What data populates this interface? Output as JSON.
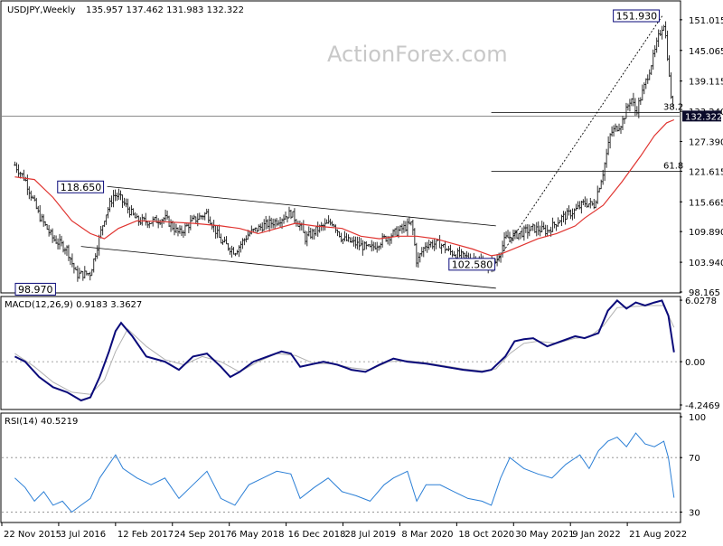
{
  "header": {
    "symbol": "USDJPY,Weekly",
    "ohlc": "135.957 137.462 131.983 132.322"
  },
  "watermark": "ActionForex.com",
  "colors": {
    "bars": "#1a1a1a",
    "ma": "#e0332f",
    "macd": "#0a0a7a",
    "signal": "#b0b0b0",
    "guide": "#000000",
    "current_bg": "#0a0a2a"
  },
  "chart_data": [
    {
      "type": "ohlc",
      "title": "USDJPY,Weekly",
      "ylim": [
        98.165,
        154.5
      ],
      "y_ticks": [
        "151.015",
        "145.065",
        "139.115",
        "133.240",
        "127.390",
        "121.615",
        "115.665",
        "109.890",
        "103.940",
        "98.165"
      ],
      "x_ticks": [
        "22 Nov 2015",
        "3 Jul 2016",
        "12 Feb 2017",
        "24 Sep 2017",
        "6 May 2018",
        "16 Dec 2018",
        "28 Jul 2019",
        "8 Mar 2020",
        "18 Oct 2020",
        "30 May 2021",
        "9 Jan 2022",
        "21 Aug 2022"
      ],
      "current_price": "132.322",
      "close_path": [
        [
          2015.89,
          122.8
        ],
        [
          2016.0,
          120.0
        ],
        [
          2016.15,
          113.0
        ],
        [
          2016.3,
          108.5
        ],
        [
          2016.45,
          106.5
        ],
        [
          2016.55,
          101.5
        ],
        [
          2016.7,
          101.8
        ],
        [
          2016.85,
          112.5
        ],
        [
          2016.95,
          117.0
        ],
        [
          2017.0,
          116.8
        ],
        [
          2017.2,
          112.0
        ],
        [
          2017.35,
          111.8
        ],
        [
          2017.5,
          112.5
        ],
        [
          2017.65,
          109.5
        ],
        [
          2017.8,
          112.0
        ],
        [
          2017.95,
          113.5
        ],
        [
          2018.1,
          108.0
        ],
        [
          2018.25,
          106.0
        ],
        [
          2018.4,
          109.5
        ],
        [
          2018.55,
          111.0
        ],
        [
          2018.7,
          112.0
        ],
        [
          2018.85,
          113.5
        ],
        [
          2018.97,
          110.5
        ],
        [
          2019.0,
          108.5
        ],
        [
          2019.15,
          110.5
        ],
        [
          2019.3,
          111.8
        ],
        [
          2019.4,
          108.5
        ],
        [
          2019.55,
          107.5
        ],
        [
          2019.7,
          106.5
        ],
        [
          2019.85,
          108.5
        ],
        [
          2019.95,
          109.5
        ],
        [
          2020.15,
          111.5
        ],
        [
          2020.2,
          104.0
        ],
        [
          2020.3,
          107.5
        ],
        [
          2020.45,
          107.5
        ],
        [
          2020.55,
          106.0
        ],
        [
          2020.7,
          105.0
        ],
        [
          2020.85,
          104.5
        ],
        [
          2020.95,
          103.3
        ],
        [
          2021.05,
          104.0
        ],
        [
          2021.15,
          108.5
        ],
        [
          2021.3,
          109.5
        ],
        [
          2021.45,
          110.5
        ],
        [
          2021.6,
          110.0
        ],
        [
          2021.75,
          112.5
        ],
        [
          2021.9,
          114.0
        ],
        [
          2022.0,
          115.5
        ],
        [
          2022.1,
          115.0
        ],
        [
          2022.2,
          121.5
        ],
        [
          2022.28,
          129.0
        ],
        [
          2022.4,
          131.0
        ],
        [
          2022.5,
          136.0
        ],
        [
          2022.55,
          133.0
        ],
        [
          2022.65,
          138.5
        ],
        [
          2022.75,
          144.5
        ],
        [
          2022.8,
          148.0
        ],
        [
          2022.85,
          150.5
        ],
        [
          2022.88,
          146.5
        ],
        [
          2022.91,
          139.5
        ],
        [
          2022.94,
          134.5
        ],
        [
          2022.96,
          132.3
        ]
      ],
      "series": [
        {
          "name": "",
          "points": [
            [
              2015.89,
              120.5
            ],
            [
              2016.1,
              120.0
            ],
            [
              2016.3,
              116.5
            ],
            [
              2016.5,
              112.0
            ],
            [
              2016.7,
              109.5
            ],
            [
              2016.85,
              108.5
            ],
            [
              2017.0,
              110.5
            ],
            [
              2017.2,
              112.0
            ],
            [
              2017.5,
              111.8
            ],
            [
              2017.8,
              111.5
            ],
            [
              2018.1,
              111.0
            ],
            [
              2018.3,
              110.5
            ],
            [
              2018.5,
              109.5
            ],
            [
              2018.7,
              110.5
            ],
            [
              2018.9,
              111.5
            ],
            [
              2019.1,
              111.0
            ],
            [
              2019.4,
              110.5
            ],
            [
              2019.6,
              109.0
            ],
            [
              2019.8,
              108.5
            ],
            [
              2020.0,
              109.0
            ],
            [
              2020.2,
              109.0
            ],
            [
              2020.4,
              108.5
            ],
            [
              2020.6,
              107.5
            ],
            [
              2020.8,
              106.5
            ],
            [
              2021.0,
              105.2
            ],
            [
              2021.1,
              105.5
            ],
            [
              2021.3,
              107.0
            ],
            [
              2021.5,
              108.5
            ],
            [
              2021.7,
              109.5
            ],
            [
              2021.9,
              111.0
            ],
            [
              2022.0,
              112.5
            ],
            [
              2022.2,
              115.0
            ],
            [
              2022.4,
              119.5
            ],
            [
              2022.6,
              124.5
            ],
            [
              2022.75,
              128.5
            ],
            [
              2022.88,
              131.0
            ],
            [
              2022.96,
              131.6
            ]
          ]
        }
      ],
      "annotations": [
        {
          "label": "118.650",
          "x": 2016.88,
          "y": 118.65,
          "kind": "high"
        },
        {
          "label": "98.970",
          "x": 2016.47,
          "y": 98.97,
          "kind": "low"
        },
        {
          "label": "102.580",
          "x": 2021.0,
          "y": 102.58,
          "kind": "low"
        },
        {
          "label": "151.930",
          "x": 2022.84,
          "y": 151.93,
          "kind": "high"
        }
      ],
      "channel": {
        "upper": [
          [
            2016.88,
            118.65
          ],
          [
            2021.05,
            111.0
          ]
        ],
        "lower": [
          [
            2016.6,
            107.0
          ],
          [
            2021.05,
            98.9
          ]
        ]
      },
      "fib_levels": [
        {
          "label": "38.2",
          "y": 133.0,
          "x_start": 2021.0
        },
        {
          "label": "61.8",
          "y": 121.6,
          "x_start": 2021.0
        }
      ],
      "projection_line": [
        [
          2021.0,
          102.58
        ],
        [
          2022.84,
          151.93
        ]
      ]
    },
    {
      "type": "line",
      "title": "MACD(12,26,9) 0.9183 3.3627",
      "ylim": [
        -4.6,
        6.3
      ],
      "y_ticks": [
        "6.0278",
        "0.00",
        "-4.2469"
      ],
      "series": [
        {
          "name": "MACD",
          "points": [
            [
              2015.89,
              0.5
            ],
            [
              2016.0,
              0.0
            ],
            [
              2016.15,
              -1.5
            ],
            [
              2016.3,
              -2.5
            ],
            [
              2016.45,
              -3.0
            ],
            [
              2016.6,
              -3.8
            ],
            [
              2016.7,
              -3.5
            ],
            [
              2016.8,
              -1.5
            ],
            [
              2016.9,
              1.0
            ],
            [
              2016.97,
              3.0
            ],
            [
              2017.03,
              3.8
            ],
            [
              2017.15,
              2.5
            ],
            [
              2017.3,
              0.5
            ],
            [
              2017.5,
              0.0
            ],
            [
              2017.65,
              -0.8
            ],
            [
              2017.8,
              0.5
            ],
            [
              2017.95,
              0.8
            ],
            [
              2018.1,
              -0.5
            ],
            [
              2018.2,
              -1.5
            ],
            [
              2018.3,
              -1.0
            ],
            [
              2018.45,
              0.0
            ],
            [
              2018.6,
              0.5
            ],
            [
              2018.75,
              1.0
            ],
            [
              2018.85,
              0.8
            ],
            [
              2018.95,
              -0.5
            ],
            [
              2019.05,
              -0.3
            ],
            [
              2019.2,
              0.0
            ],
            [
              2019.35,
              -0.3
            ],
            [
              2019.5,
              -0.8
            ],
            [
              2019.65,
              -1.0
            ],
            [
              2019.8,
              -0.3
            ],
            [
              2019.95,
              0.3
            ],
            [
              2020.1,
              0.0
            ],
            [
              2020.3,
              -0.2
            ],
            [
              2020.5,
              -0.5
            ],
            [
              2020.7,
              -0.8
            ],
            [
              2020.9,
              -1.0
            ],
            [
              2021.0,
              -0.8
            ],
            [
              2021.15,
              0.5
            ],
            [
              2021.25,
              2.0
            ],
            [
              2021.35,
              2.2
            ],
            [
              2021.45,
              2.3
            ],
            [
              2021.6,
              1.5
            ],
            [
              2021.75,
              2.0
            ],
            [
              2021.9,
              2.5
            ],
            [
              2022.0,
              2.3
            ],
            [
              2022.15,
              2.8
            ],
            [
              2022.25,
              5.0
            ],
            [
              2022.35,
              6.0
            ],
            [
              2022.45,
              5.2
            ],
            [
              2022.55,
              5.8
            ],
            [
              2022.65,
              5.5
            ],
            [
              2022.75,
              5.8
            ],
            [
              2022.83,
              6.0
            ],
            [
              2022.9,
              4.5
            ],
            [
              2022.96,
              0.92
            ]
          ]
        },
        {
          "name": "Signal",
          "points": [
            [
              2015.89,
              0.8
            ],
            [
              2016.1,
              -0.5
            ],
            [
              2016.3,
              -2.0
            ],
            [
              2016.5,
              -3.0
            ],
            [
              2016.7,
              -3.2
            ],
            [
              2016.85,
              -1.8
            ],
            [
              2016.97,
              1.0
            ],
            [
              2017.1,
              3.2
            ],
            [
              2017.3,
              1.5
            ],
            [
              2017.5,
              0.2
            ],
            [
              2017.7,
              -0.3
            ],
            [
              2017.9,
              0.5
            ],
            [
              2018.1,
              0.0
            ],
            [
              2018.3,
              -1.0
            ],
            [
              2018.5,
              0.0
            ],
            [
              2018.7,
              0.8
            ],
            [
              2018.9,
              0.6
            ],
            [
              2019.1,
              -0.2
            ],
            [
              2019.3,
              -0.2
            ],
            [
              2019.5,
              -0.6
            ],
            [
              2019.7,
              -0.8
            ],
            [
              2019.9,
              0.0
            ],
            [
              2020.1,
              0.1
            ],
            [
              2020.3,
              -0.1
            ],
            [
              2020.5,
              -0.4
            ],
            [
              2020.7,
              -0.7
            ],
            [
              2020.9,
              -0.9
            ],
            [
              2021.05,
              -0.7
            ],
            [
              2021.2,
              0.8
            ],
            [
              2021.35,
              1.8
            ],
            [
              2021.5,
              2.0
            ],
            [
              2021.7,
              1.8
            ],
            [
              2021.9,
              2.3
            ],
            [
              2022.05,
              2.4
            ],
            [
              2022.2,
              3.5
            ],
            [
              2022.35,
              5.3
            ],
            [
              2022.5,
              5.4
            ],
            [
              2022.7,
              5.5
            ],
            [
              2022.85,
              5.5
            ],
            [
              2022.96,
              3.36
            ]
          ]
        }
      ]
    },
    {
      "type": "line",
      "title": "RSI(14) 40.5219",
      "ylim": [
        23,
        102
      ],
      "y_ticks": [
        "100",
        "70",
        "30"
      ],
      "reference_lines": [
        70,
        30
      ],
      "series": [
        {
          "name": "RSI",
          "points": [
            [
              2015.89,
              55
            ],
            [
              2016.0,
              48
            ],
            [
              2016.1,
              38
            ],
            [
              2016.2,
              45
            ],
            [
              2016.3,
              35
            ],
            [
              2016.4,
              38
            ],
            [
              2016.5,
              30
            ],
            [
              2016.6,
              35
            ],
            [
              2016.7,
              40
            ],
            [
              2016.8,
              55
            ],
            [
              2016.9,
              65
            ],
            [
              2016.97,
              72
            ],
            [
              2017.05,
              62
            ],
            [
              2017.2,
              55
            ],
            [
              2017.35,
              50
            ],
            [
              2017.5,
              55
            ],
            [
              2017.65,
              40
            ],
            [
              2017.8,
              50
            ],
            [
              2017.95,
              60
            ],
            [
              2018.1,
              40
            ],
            [
              2018.25,
              35
            ],
            [
              2018.4,
              50
            ],
            [
              2018.55,
              55
            ],
            [
              2018.7,
              60
            ],
            [
              2018.85,
              58
            ],
            [
              2018.95,
              40
            ],
            [
              2019.1,
              48
            ],
            [
              2019.25,
              55
            ],
            [
              2019.4,
              45
            ],
            [
              2019.55,
              42
            ],
            [
              2019.7,
              38
            ],
            [
              2019.85,
              50
            ],
            [
              2019.95,
              55
            ],
            [
              2020.1,
              60
            ],
            [
              2020.2,
              38
            ],
            [
              2020.3,
              50
            ],
            [
              2020.45,
              50
            ],
            [
              2020.6,
              45
            ],
            [
              2020.75,
              40
            ],
            [
              2020.9,
              38
            ],
            [
              2021.0,
              35
            ],
            [
              2021.1,
              55
            ],
            [
              2021.2,
              70
            ],
            [
              2021.35,
              62
            ],
            [
              2021.5,
              58
            ],
            [
              2021.65,
              55
            ],
            [
              2021.8,
              65
            ],
            [
              2021.95,
              72
            ],
            [
              2022.05,
              62
            ],
            [
              2022.15,
              75
            ],
            [
              2022.25,
              82
            ],
            [
              2022.35,
              85
            ],
            [
              2022.45,
              78
            ],
            [
              2022.55,
              88
            ],
            [
              2022.65,
              80
            ],
            [
              2022.75,
              78
            ],
            [
              2022.85,
              82
            ],
            [
              2022.9,
              70
            ],
            [
              2022.96,
              40.5
            ]
          ]
        }
      ]
    }
  ],
  "macd_title": "MACD(12,26,9) 0.9183 3.3627",
  "rsi_title": "RSI(14) 40.5219"
}
